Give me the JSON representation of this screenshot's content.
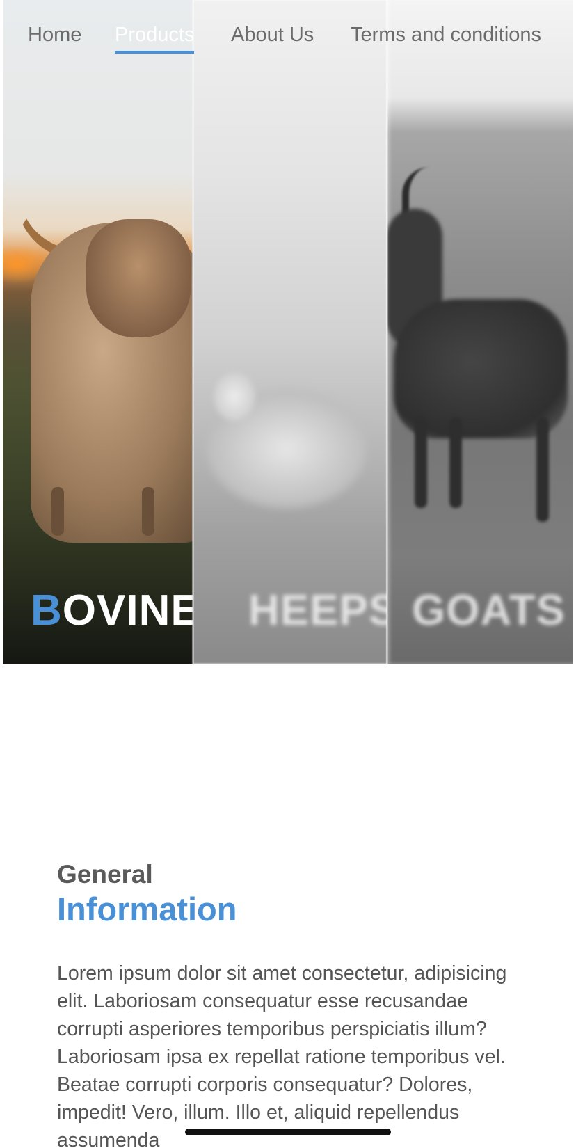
{
  "nav": {
    "items": [
      {
        "label": "Home"
      },
      {
        "label": "Products"
      },
      {
        "label": "About Us"
      },
      {
        "label": "Terms and conditions"
      }
    ],
    "active": "Products",
    "accent_color": "#4a90d6"
  },
  "hero": {
    "panels": [
      {
        "first_letter": "B",
        "rest": "OVINE",
        "image": "highland-cow-photo"
      },
      {
        "label": "HEEPS",
        "image": "sheep-photo"
      },
      {
        "label": "GOATS",
        "image": "goat-photo"
      }
    ]
  },
  "info": {
    "heading_small": "General",
    "heading_large": "Information",
    "body": "Lorem ipsum dolor sit amet consectetur, adipisicing elit. Laboriosam consequatur esse recusandae corrupti asperiores temporibus perspiciatis illum? Laboriosam ipsa ex repellat ratione temporibus vel. Beatae corrupti corporis consequatur? Dolores, impedit! Vero, illum. Illo et, aliquid repellendus assumenda"
  }
}
